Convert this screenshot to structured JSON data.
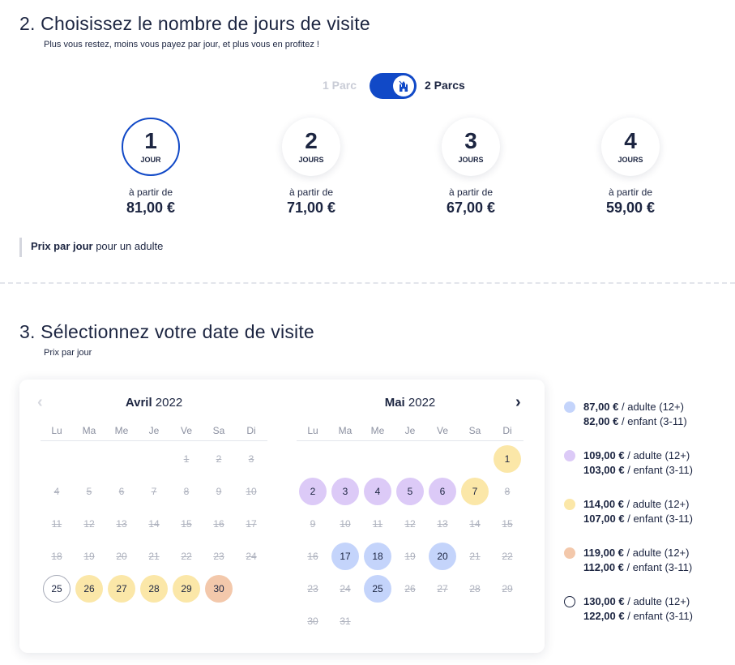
{
  "section2": {
    "title": "2. Choisissez le nombre de jours de visite",
    "subtitle": "Plus vous restez, moins vous payez par jour, et plus vous en profitez !"
  },
  "toggle": {
    "option1": "1 Parc",
    "option2": "2 Parcs",
    "selected": "2 Parcs",
    "icon": "castle-icon"
  },
  "days": [
    {
      "num": "1",
      "unit": "JOUR",
      "from": "à partir de",
      "price": "81,00 €",
      "selected": true
    },
    {
      "num": "2",
      "unit": "JOURS",
      "from": "à partir de",
      "price": "71,00 €",
      "selected": false
    },
    {
      "num": "3",
      "unit": "JOURS",
      "from": "à partir de",
      "price": "67,00 €",
      "selected": false
    },
    {
      "num": "4",
      "unit": "JOURS",
      "from": "à partir de",
      "price": "59,00 €",
      "selected": false
    }
  ],
  "note": {
    "bold": "Prix par jour",
    "rest": " pour un adulte"
  },
  "section3": {
    "title": "3. Sélectionnez votre date de visite",
    "subtitle": "Prix par jour"
  },
  "calendar": {
    "weekdays": [
      "Lu",
      "Ma",
      "Me",
      "Je",
      "Ve",
      "Sa",
      "Di"
    ],
    "months": [
      {
        "name": "Avril",
        "year": "2022",
        "offset": 4,
        "days": [
          {
            "d": "1",
            "s": "na"
          },
          {
            "d": "2",
            "s": "na"
          },
          {
            "d": "3",
            "s": "na"
          },
          {
            "d": "4",
            "s": "na"
          },
          {
            "d": "5",
            "s": "na"
          },
          {
            "d": "6",
            "s": "na"
          },
          {
            "d": "7",
            "s": "na"
          },
          {
            "d": "8",
            "s": "na"
          },
          {
            "d": "9",
            "s": "na"
          },
          {
            "d": "10",
            "s": "na"
          },
          {
            "d": "11",
            "s": "na"
          },
          {
            "d": "12",
            "s": "na"
          },
          {
            "d": "13",
            "s": "na"
          },
          {
            "d": "14",
            "s": "na"
          },
          {
            "d": "15",
            "s": "na"
          },
          {
            "d": "16",
            "s": "na"
          },
          {
            "d": "17",
            "s": "na"
          },
          {
            "d": "18",
            "s": "na"
          },
          {
            "d": "19",
            "s": "na"
          },
          {
            "d": "20",
            "s": "na"
          },
          {
            "d": "21",
            "s": "na"
          },
          {
            "d": "22",
            "s": "na"
          },
          {
            "d": "23",
            "s": "na"
          },
          {
            "d": "24",
            "s": "na"
          },
          {
            "d": "25",
            "s": "white"
          },
          {
            "d": "26",
            "s": "yellow"
          },
          {
            "d": "27",
            "s": "yellow"
          },
          {
            "d": "28",
            "s": "yellow"
          },
          {
            "d": "29",
            "s": "yellow"
          },
          {
            "d": "30",
            "s": "orange"
          }
        ]
      },
      {
        "name": "Mai",
        "year": "2022",
        "offset": 6,
        "days": [
          {
            "d": "1",
            "s": "yellow"
          },
          {
            "d": "2",
            "s": "purple"
          },
          {
            "d": "3",
            "s": "purple"
          },
          {
            "d": "4",
            "s": "purple"
          },
          {
            "d": "5",
            "s": "purple"
          },
          {
            "d": "6",
            "s": "purple"
          },
          {
            "d": "7",
            "s": "yellow"
          },
          {
            "d": "8",
            "s": "na"
          },
          {
            "d": "9",
            "s": "na"
          },
          {
            "d": "10",
            "s": "na"
          },
          {
            "d": "11",
            "s": "na"
          },
          {
            "d": "12",
            "s": "na"
          },
          {
            "d": "13",
            "s": "na"
          },
          {
            "d": "14",
            "s": "na"
          },
          {
            "d": "15",
            "s": "na"
          },
          {
            "d": "16",
            "s": "na"
          },
          {
            "d": "17",
            "s": "blue"
          },
          {
            "d": "18",
            "s": "blue"
          },
          {
            "d": "19",
            "s": "na"
          },
          {
            "d": "20",
            "s": "blue"
          },
          {
            "d": "21",
            "s": "na"
          },
          {
            "d": "22",
            "s": "na"
          },
          {
            "d": "23",
            "s": "na"
          },
          {
            "d": "24",
            "s": "na"
          },
          {
            "d": "25",
            "s": "blue"
          },
          {
            "d": "26",
            "s": "na"
          },
          {
            "d": "27",
            "s": "na"
          },
          {
            "d": "28",
            "s": "na"
          },
          {
            "d": "29",
            "s": "na"
          },
          {
            "d": "30",
            "s": "na"
          },
          {
            "d": "31",
            "s": "na"
          }
        ]
      }
    ]
  },
  "legend": [
    {
      "color": "#c4d4fb",
      "adult_price": "87,00 €",
      "adult_label": " / adulte (12+)",
      "child_price": "82,00 €",
      "child_label": " / enfant (3-11)"
    },
    {
      "color": "#dccaf7",
      "adult_price": "109,00 €",
      "adult_label": " / adulte (12+)",
      "child_price": "103,00 €",
      "child_label": " / enfant (3-11)"
    },
    {
      "color": "#fbe7a8",
      "adult_price": "114,00 €",
      "adult_label": " / adulte (12+)",
      "child_price": "107,00 €",
      "child_label": " / enfant (3-11)"
    },
    {
      "color": "#f3c8ab",
      "adult_price": "119,00 €",
      "adult_label": " / adulte (12+)",
      "child_price": "112,00 €",
      "child_label": " / enfant (3-11)"
    },
    {
      "color": "#ffffff",
      "adult_price": "130,00 €",
      "adult_label": " / adulte (12+)",
      "child_price": "122,00 €",
      "child_label": " / enfant (3-11)"
    }
  ]
}
